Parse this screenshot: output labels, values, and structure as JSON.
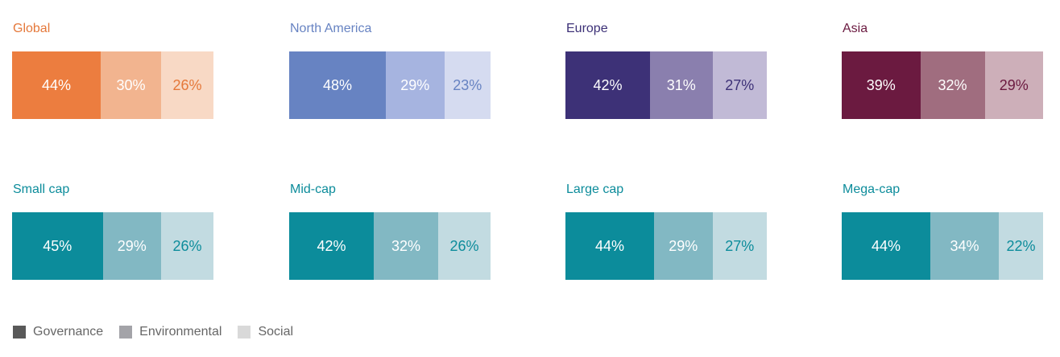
{
  "chart_data": [
    {
      "type": "bar",
      "stacked": true,
      "orientation": "horizontal",
      "title": "Global",
      "categories": [
        "Governance",
        "Environmental",
        "Social"
      ],
      "values": [
        44,
        30,
        26
      ],
      "labels": [
        "44%",
        "30%",
        "26%"
      ],
      "colors": [
        "#ec7d3f",
        "#f2b48f",
        "#f8d9c5"
      ],
      "label_colors": [
        "#ffffff",
        "#ffffff",
        "#e5783a"
      ],
      "title_color": "#e5783a"
    },
    {
      "type": "bar",
      "stacked": true,
      "orientation": "horizontal",
      "title": "North America",
      "categories": [
        "Governance",
        "Environmental",
        "Social"
      ],
      "values": [
        48,
        29,
        23
      ],
      "labels": [
        "48%",
        "29%",
        "23%"
      ],
      "colors": [
        "#6783c2",
        "#a6b4e0",
        "#d5dbf0"
      ],
      "label_colors": [
        "#ffffff",
        "#ffffff",
        "#6783c2"
      ],
      "title_color": "#6783c2"
    },
    {
      "type": "bar",
      "stacked": true,
      "orientation": "horizontal",
      "title": "Europe",
      "categories": [
        "Governance",
        "Environmental",
        "Social"
      ],
      "values": [
        42,
        31,
        27
      ],
      "labels": [
        "42%",
        "31%",
        "27%"
      ],
      "colors": [
        "#3d3177",
        "#8a7fae",
        "#c1bad6"
      ],
      "label_colors": [
        "#ffffff",
        "#ffffff",
        "#3d3177"
      ],
      "title_color": "#3d3177"
    },
    {
      "type": "bar",
      "stacked": true,
      "orientation": "horizontal",
      "title": "Asia",
      "categories": [
        "Governance",
        "Environmental",
        "Social"
      ],
      "values": [
        39,
        32,
        29
      ],
      "labels": [
        "39%",
        "32%",
        "29%"
      ],
      "colors": [
        "#6b1a40",
        "#a06d7f",
        "#cdafb9"
      ],
      "label_colors": [
        "#ffffff",
        "#ffffff",
        "#6b1a40"
      ],
      "title_color": "#6b1a40"
    },
    {
      "type": "bar",
      "stacked": true,
      "orientation": "horizontal",
      "title": "Small cap",
      "categories": [
        "Governance",
        "Environmental",
        "Social"
      ],
      "values": [
        45,
        29,
        26
      ],
      "labels": [
        "45%",
        "29%",
        "26%"
      ],
      "colors": [
        "#0c8c9b",
        "#82b8c3",
        "#c2dbe1"
      ],
      "label_colors": [
        "#ffffff",
        "#ffffff",
        "#0c8c9b"
      ],
      "title_color": "#0c8c9b"
    },
    {
      "type": "bar",
      "stacked": true,
      "orientation": "horizontal",
      "title": "Mid-cap",
      "categories": [
        "Governance",
        "Environmental",
        "Social"
      ],
      "values": [
        42,
        32,
        26
      ],
      "labels": [
        "42%",
        "32%",
        "26%"
      ],
      "colors": [
        "#0c8c9b",
        "#82b8c3",
        "#c2dbe1"
      ],
      "label_colors": [
        "#ffffff",
        "#ffffff",
        "#0c8c9b"
      ],
      "title_color": "#0c8c9b"
    },
    {
      "type": "bar",
      "stacked": true,
      "orientation": "horizontal",
      "title": "Large cap",
      "categories": [
        "Governance",
        "Environmental",
        "Social"
      ],
      "values": [
        44,
        29,
        27
      ],
      "labels": [
        "44%",
        "29%",
        "27%"
      ],
      "colors": [
        "#0c8c9b",
        "#82b8c3",
        "#c2dbe1"
      ],
      "label_colors": [
        "#ffffff",
        "#ffffff",
        "#0c8c9b"
      ],
      "title_color": "#0c8c9b"
    },
    {
      "type": "bar",
      "stacked": true,
      "orientation": "horizontal",
      "title": "Mega-cap",
      "categories": [
        "Governance",
        "Environmental",
        "Social"
      ],
      "values": [
        44,
        34,
        22
      ],
      "labels": [
        "44%",
        "34%",
        "22%"
      ],
      "colors": [
        "#0c8c9b",
        "#82b8c3",
        "#c2dbe1"
      ],
      "label_colors": [
        "#ffffff",
        "#ffffff",
        "#0c8c9b"
      ],
      "title_color": "#0c8c9b"
    }
  ],
  "legend": {
    "items": [
      {
        "label": "Governance",
        "color": "#595959"
      },
      {
        "label": "Environmental",
        "color": "#a3a3a8"
      },
      {
        "label": "Social",
        "color": "#d9d9d9"
      }
    ]
  }
}
